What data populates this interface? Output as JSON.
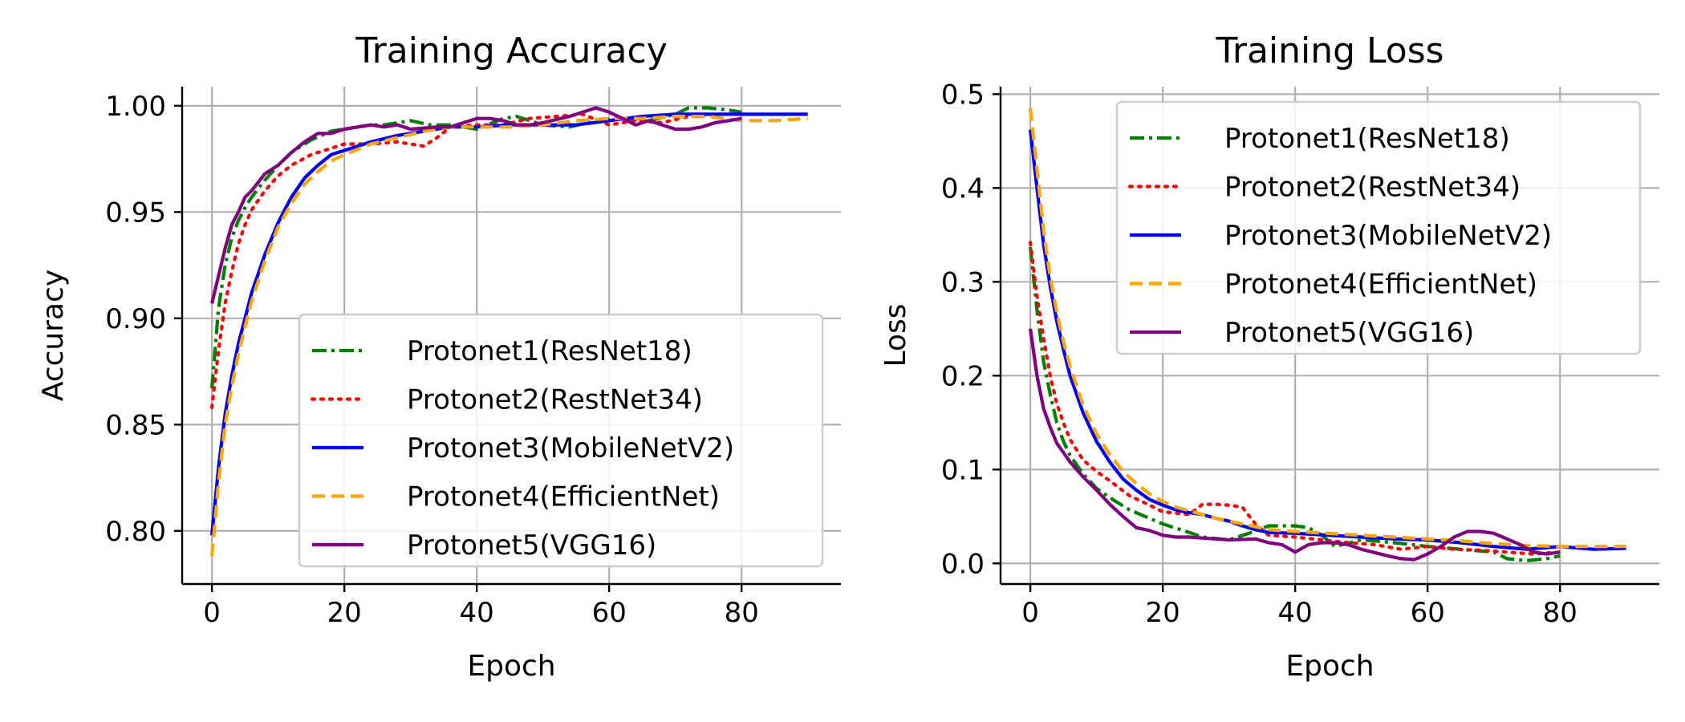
{
  "chart_data": [
    {
      "type": "line",
      "title": "Training Accuracy",
      "xlabel": "Epoch",
      "ylabel": "Accuracy",
      "xlim": [
        -4.5,
        95
      ],
      "ylim": [
        0.775,
        1.009
      ],
      "xticks": [
        0,
        20,
        40,
        60,
        80
      ],
      "xtick_labels": [
        "0",
        "20",
        "40",
        "60",
        "80"
      ],
      "yticks": [
        0.8,
        0.85,
        0.9,
        0.95,
        1.0
      ],
      "ytick_labels": [
        "0.80",
        "0.85",
        "0.90",
        "0.95",
        "1.00"
      ],
      "grid": true,
      "legend_position": "lower-right",
      "series": [
        {
          "name": "Protonet1(ResNet18)",
          "color": "#008000",
          "dash": "dashdot",
          "x": [
            0,
            1,
            2,
            3,
            4,
            5,
            6,
            8,
            10,
            12,
            15,
            18,
            20,
            24,
            26,
            30,
            33,
            36,
            40,
            44,
            46,
            50,
            54,
            58,
            62,
            66,
            70,
            72,
            75,
            78,
            80
          ],
          "y": [
            0.867,
            0.905,
            0.925,
            0.938,
            0.946,
            0.952,
            0.957,
            0.965,
            0.972,
            0.978,
            0.984,
            0.988,
            0.989,
            0.991,
            0.991,
            0.993,
            0.991,
            0.991,
            0.989,
            0.994,
            0.995,
            0.991,
            0.99,
            0.993,
            0.994,
            0.993,
            0.996,
            0.999,
            0.999,
            0.998,
            0.997
          ]
        },
        {
          "name": "Protonet2(RestNet34)",
          "color": "#ff0000",
          "dash": "dotted",
          "x": [
            0,
            1,
            2,
            3,
            4,
            5,
            6,
            8,
            10,
            12,
            15,
            18,
            20,
            24,
            28,
            32,
            34,
            36,
            40,
            44,
            48,
            52,
            56,
            60,
            64,
            68,
            72,
            76,
            80
          ],
          "y": [
            0.858,
            0.885,
            0.907,
            0.922,
            0.935,
            0.944,
            0.951,
            0.96,
            0.967,
            0.972,
            0.977,
            0.98,
            0.982,
            0.982,
            0.983,
            0.981,
            0.985,
            0.99,
            0.991,
            0.991,
            0.994,
            0.995,
            0.996,
            0.991,
            0.993,
            0.992,
            0.995,
            0.996,
            0.996
          ]
        },
        {
          "name": "Protonet3(MobileNetV2)",
          "color": "#0000ff",
          "dash": "solid",
          "x": [
            0,
            1,
            2,
            3,
            4,
            5,
            6,
            8,
            10,
            12,
            14,
            16,
            18,
            20,
            24,
            28,
            32,
            36,
            40,
            45,
            50,
            55,
            60,
            65,
            70,
            75,
            80,
            85,
            90
          ],
          "y": [
            0.798,
            0.83,
            0.855,
            0.873,
            0.888,
            0.9,
            0.912,
            0.93,
            0.945,
            0.957,
            0.966,
            0.972,
            0.977,
            0.979,
            0.983,
            0.986,
            0.988,
            0.99,
            0.99,
            0.991,
            0.991,
            0.991,
            0.993,
            0.995,
            0.996,
            0.996,
            0.996,
            0.996,
            0.996
          ]
        },
        {
          "name": "Protonet4(EfficientNet)",
          "color": "#ffa500",
          "dash": "dashed",
          "x": [
            0,
            1,
            2,
            3,
            4,
            5,
            6,
            8,
            10,
            12,
            14,
            16,
            18,
            20,
            24,
            28,
            32,
            36,
            40,
            45,
            50,
            55,
            60,
            65,
            70,
            75,
            80,
            85,
            90
          ],
          "y": [
            0.788,
            0.823,
            0.85,
            0.868,
            0.883,
            0.896,
            0.908,
            0.927,
            0.943,
            0.954,
            0.963,
            0.969,
            0.974,
            0.977,
            0.982,
            0.985,
            0.988,
            0.99,
            0.99,
            0.99,
            0.991,
            0.993,
            0.994,
            0.994,
            0.995,
            0.995,
            0.993,
            0.993,
            0.994
          ]
        },
        {
          "name": "Protonet5(VGG16)",
          "color": "#800080",
          "dash": "solid",
          "x": [
            0,
            1,
            2,
            3,
            4,
            5,
            6,
            8,
            10,
            12,
            14,
            16,
            18,
            20,
            22,
            24,
            26,
            28,
            30,
            34,
            36,
            38,
            40,
            42,
            44,
            46,
            48,
            50,
            54,
            58,
            60,
            62,
            64,
            66,
            68,
            70,
            72,
            74,
            76,
            78,
            80
          ],
          "y": [
            0.907,
            0.92,
            0.933,
            0.944,
            0.95,
            0.957,
            0.96,
            0.968,
            0.972,
            0.978,
            0.983,
            0.987,
            0.987,
            0.989,
            0.99,
            0.991,
            0.99,
            0.991,
            0.989,
            0.99,
            0.99,
            0.992,
            0.994,
            0.994,
            0.993,
            0.991,
            0.991,
            0.992,
            0.995,
            0.999,
            0.997,
            0.994,
            0.991,
            0.993,
            0.991,
            0.989,
            0.989,
            0.99,
            0.992,
            0.993,
            0.994
          ]
        }
      ]
    },
    {
      "type": "line",
      "title": "Training Loss",
      "xlabel": "Epoch",
      "ylabel": "Loss",
      "xlim": [
        -4.5,
        95
      ],
      "ylim": [
        -0.022,
        0.508
      ],
      "xticks": [
        0,
        20,
        40,
        60,
        80
      ],
      "xtick_labels": [
        "0",
        "20",
        "40",
        "60",
        "80"
      ],
      "yticks": [
        0.0,
        0.1,
        0.2,
        0.3,
        0.4,
        0.5
      ],
      "ytick_labels": [
        "0.0",
        "0.1",
        "0.2",
        "0.3",
        "0.4",
        "0.5"
      ],
      "grid": true,
      "legend_position": "upper-right",
      "series": [
        {
          "name": "Protonet1(ResNet18)",
          "color": "#008000",
          "dash": "dashdot",
          "x": [
            0,
            1,
            2,
            3,
            4,
            5,
            6,
            8,
            10,
            12,
            15,
            18,
            20,
            24,
            26,
            30,
            33,
            36,
            40,
            42,
            44,
            46,
            50,
            55,
            60,
            65,
            70,
            72,
            75,
            78,
            80
          ],
          "y": [
            0.337,
            0.27,
            0.215,
            0.18,
            0.15,
            0.13,
            0.115,
            0.095,
            0.08,
            0.07,
            0.057,
            0.048,
            0.042,
            0.033,
            0.028,
            0.025,
            0.032,
            0.04,
            0.04,
            0.038,
            0.03,
            0.018,
            0.025,
            0.022,
            0.018,
            0.015,
            0.012,
            0.005,
            0.003,
            0.005,
            0.008
          ]
        },
        {
          "name": "Protonet2(RestNet34)",
          "color": "#ff0000",
          "dash": "dotted",
          "x": [
            0,
            1,
            2,
            3,
            4,
            5,
            6,
            8,
            10,
            12,
            15,
            18,
            20,
            24,
            26,
            28,
            30,
            32,
            34,
            36,
            40,
            44,
            48,
            52,
            56,
            60,
            64,
            68,
            72,
            76,
            80
          ],
          "y": [
            0.342,
            0.285,
            0.24,
            0.2,
            0.17,
            0.15,
            0.132,
            0.11,
            0.098,
            0.088,
            0.072,
            0.062,
            0.055,
            0.052,
            0.063,
            0.063,
            0.062,
            0.06,
            0.042,
            0.03,
            0.028,
            0.025,
            0.022,
            0.02,
            0.015,
            0.018,
            0.015,
            0.014,
            0.012,
            0.01,
            0.012
          ]
        },
        {
          "name": "Protonet3(MobileNetV2)",
          "color": "#0000ff",
          "dash": "solid",
          "x": [
            0,
            1,
            2,
            3,
            4,
            5,
            6,
            8,
            10,
            12,
            14,
            16,
            18,
            20,
            22,
            24,
            26,
            28,
            30,
            32,
            34,
            36,
            40,
            45,
            50,
            55,
            60,
            65,
            70,
            75,
            80,
            85,
            90
          ],
          "y": [
            0.462,
            0.4,
            0.34,
            0.295,
            0.258,
            0.228,
            0.2,
            0.16,
            0.13,
            0.108,
            0.09,
            0.078,
            0.068,
            0.062,
            0.057,
            0.054,
            0.052,
            0.048,
            0.045,
            0.04,
            0.036,
            0.033,
            0.032,
            0.03,
            0.028,
            0.026,
            0.025,
            0.022,
            0.018,
            0.015,
            0.018,
            0.015,
            0.016
          ]
        },
        {
          "name": "Protonet4(EfficientNet)",
          "color": "#ffa500",
          "dash": "dashed",
          "x": [
            0,
            1,
            2,
            3,
            4,
            5,
            6,
            8,
            10,
            12,
            14,
            16,
            18,
            20,
            22,
            24,
            26,
            28,
            30,
            32,
            34,
            36,
            40,
            45,
            50,
            55,
            60,
            65,
            70,
            75,
            80,
            85,
            90
          ],
          "y": [
            0.485,
            0.42,
            0.355,
            0.305,
            0.268,
            0.236,
            0.21,
            0.168,
            0.138,
            0.116,
            0.098,
            0.085,
            0.074,
            0.066,
            0.06,
            0.056,
            0.052,
            0.048,
            0.045,
            0.042,
            0.039,
            0.036,
            0.034,
            0.032,
            0.03,
            0.028,
            0.026,
            0.024,
            0.021,
            0.019,
            0.018,
            0.018,
            0.018
          ]
        },
        {
          "name": "Protonet5(VGG16)",
          "color": "#800080",
          "dash": "solid",
          "x": [
            0,
            1,
            2,
            3,
            4,
            5,
            6,
            8,
            10,
            12,
            14,
            16,
            18,
            20,
            22,
            24,
            26,
            28,
            30,
            34,
            36,
            38,
            40,
            42,
            44,
            46,
            48,
            50,
            54,
            56,
            58,
            60,
            62,
            64,
            66,
            68,
            70,
            72,
            74,
            76,
            78,
            80
          ],
          "y": [
            0.25,
            0.2,
            0.165,
            0.145,
            0.128,
            0.118,
            0.108,
            0.092,
            0.078,
            0.063,
            0.05,
            0.038,
            0.035,
            0.03,
            0.028,
            0.028,
            0.027,
            0.026,
            0.025,
            0.026,
            0.022,
            0.02,
            0.012,
            0.02,
            0.022,
            0.022,
            0.02,
            0.015,
            0.008,
            0.005,
            0.004,
            0.01,
            0.018,
            0.028,
            0.034,
            0.034,
            0.032,
            0.026,
            0.02,
            0.012,
            0.01,
            0.012
          ]
        }
      ]
    }
  ]
}
